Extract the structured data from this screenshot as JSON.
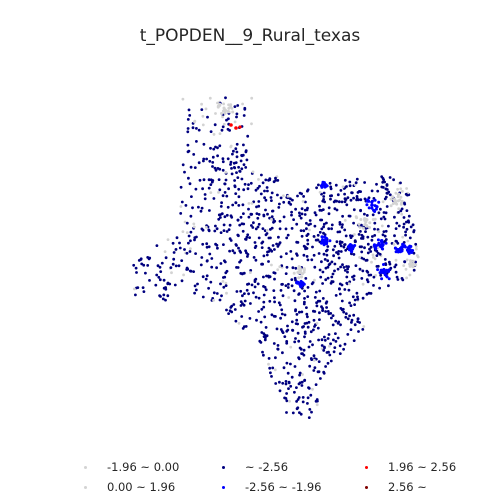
{
  "title": "t_POPDEN__9_Rural_texas",
  "colors": {
    "neg_high": "#00007f",
    "neg_mid": "#0000ff",
    "neutral": "#d3d3d3",
    "pos_mid": "#ff0000",
    "pos_high": "#7f0000"
  },
  "legend": [
    {
      "label": "-1.96 ~ 0.00",
      "color_key": "neutral"
    },
    {
      "label": "0.00 ~ 1.96",
      "color_key": "neutral"
    },
    {
      "label": "~ -2.56",
      "color_key": "neg_high"
    },
    {
      "label": "-2.56 ~ -1.96",
      "color_key": "neg_mid"
    },
    {
      "label": "1.96 ~ 2.56",
      "color_key": "pos_mid"
    },
    {
      "label": "2.56 ~",
      "color_key": "pos_high"
    }
  ]
}
